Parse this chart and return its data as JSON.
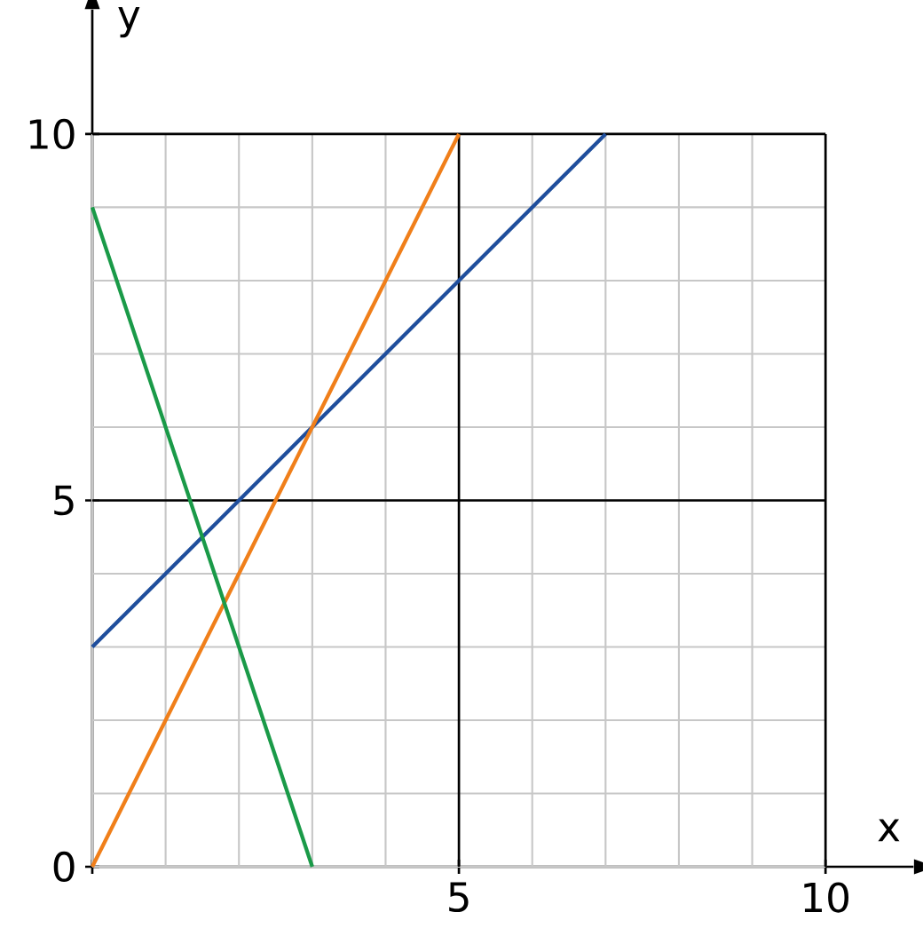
{
  "chart_data": {
    "type": "line",
    "xlabel": "x",
    "ylabel": "y",
    "xlim": [
      0,
      11.2
    ],
    "ylim": [
      0,
      11.7
    ],
    "xticks": [
      {
        "value": 0,
        "label": null
      },
      5,
      10
    ],
    "yticks": [
      0,
      5,
      10
    ],
    "grid": true,
    "marker": "none",
    "line_style": "solid",
    "series": [
      {
        "color": "#1f4e9c",
        "x": [
          0,
          7
        ],
        "values": [
          3,
          10
        ]
      },
      {
        "color": "#f07f1a",
        "x": [
          0,
          5
        ],
        "values": [
          0,
          10
        ]
      },
      {
        "color": "#1a9a48",
        "x": [
          0,
          3
        ],
        "values": [
          9,
          0
        ]
      }
    ]
  }
}
